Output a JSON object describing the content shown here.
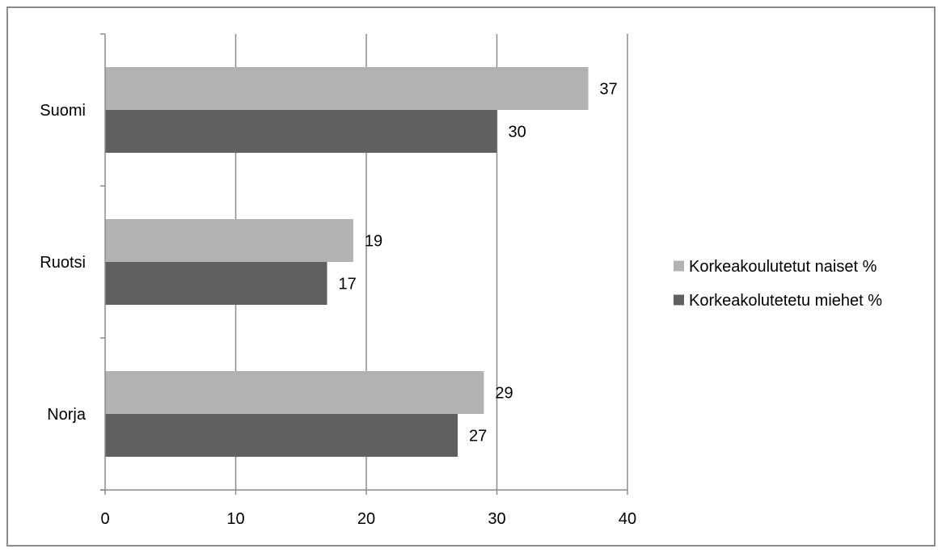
{
  "chart_data": {
    "type": "bar",
    "orientation": "horizontal",
    "categories": [
      "Suomi",
      "Ruotsi",
      "Norja"
    ],
    "series": [
      {
        "name": "Korkeakoulutetut naiset %",
        "values": [
          37,
          19,
          29
        ],
        "color": "#b2b2b2"
      },
      {
        "name": "Korkeakolutetetu miehet %",
        "values": [
          30,
          17,
          27
        ],
        "color": "#606060"
      }
    ],
    "xlim": [
      0,
      40
    ],
    "xticks": [
      0,
      10,
      20,
      30,
      40
    ],
    "xtick_labels": [
      "0",
      "10",
      "20",
      "30",
      "40"
    ],
    "data_labels": true,
    "grid": "vertical",
    "legend_position": "right",
    "title": "",
    "xlabel": "",
    "ylabel": ""
  }
}
